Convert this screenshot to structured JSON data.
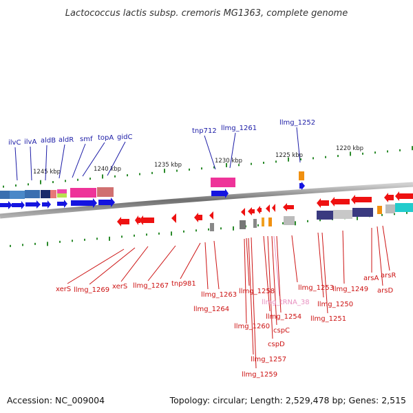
{
  "title": "Lactococcus lactis subsp. cremoris MG1363, complete genome",
  "footer": {
    "accession": "Accession: NC_009004",
    "topology": "Topology: circular; Length: 2,529,478 bp; Genes: 2,515"
  },
  "scale_labels": [
    "1245 kbp",
    "1240 kbp",
    "1235 kbp",
    "1230 kbp",
    "1225 kbp",
    "1220 kbp"
  ],
  "colors": {
    "forward_label": "#1a1aa6",
    "reverse_label": "#cc1111",
    "trna_label": "#e890c0",
    "tick": "#2a8a2a",
    "backbone": "#808080"
  },
  "forward_genes": [
    "ilvC",
    "ilvA",
    "aldB",
    "aldR",
    "smf",
    "topA",
    "gidC",
    "tnp712",
    "llmg_1261",
    "llmg_1252"
  ],
  "reverse_genes": [
    "xerS",
    "llmg_1269",
    "xerS",
    "llmg_1267",
    "tnp981",
    "llmg_1263",
    "llmg_1264",
    "llmg_1258",
    "llmg_1260",
    "llmg_tRNA_38",
    "llmg_1257",
    "llmg_1259",
    "cspC",
    "cspD",
    "llmg_1254",
    "llmg_1253",
    "llmg_1250",
    "llmg_1251",
    "llmg_1249",
    "arsA",
    "arsR",
    "arsD"
  ]
}
